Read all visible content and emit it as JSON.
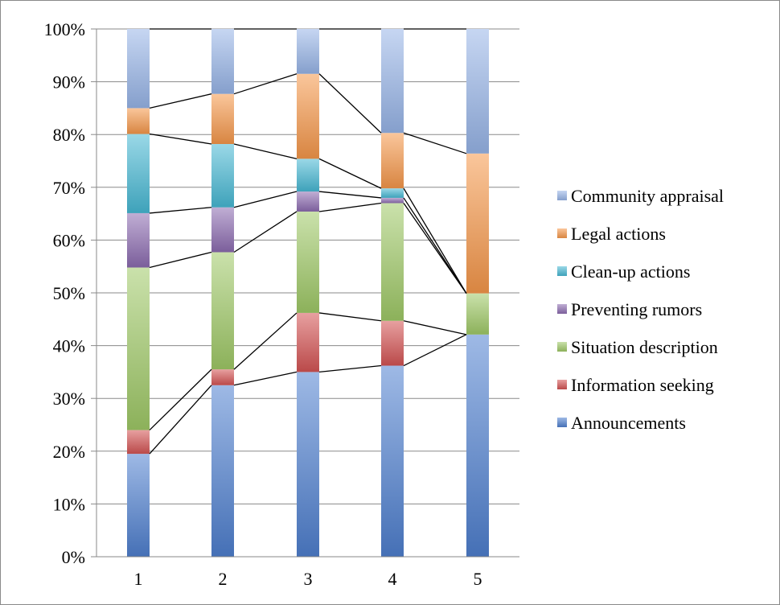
{
  "chart_data": {
    "type": "bar",
    "stacked": true,
    "percent_scale": true,
    "title": "",
    "xlabel": "",
    "ylabel": "",
    "categories": [
      "1",
      "2",
      "3",
      "4",
      "5"
    ],
    "ylim": [
      0,
      100
    ],
    "y_ticks": [
      "0%",
      "10%",
      "20%",
      "30%",
      "40%",
      "50%",
      "60%",
      "70%",
      "80%",
      "90%",
      "100%"
    ],
    "grid": true,
    "legend_position": "right",
    "connector_lines": true,
    "series": [
      {
        "name": "Announcements",
        "color": "#4e7fcf",
        "values": [
          19.5,
          32.5,
          35.0,
          36.2,
          42.1
        ]
      },
      {
        "name": "Information seeking",
        "color": "#d35353",
        "values": [
          4.5,
          3.0,
          11.2,
          8.5,
          0.0
        ]
      },
      {
        "name": "Situation description",
        "color": "#9fc966",
        "values": [
          30.8,
          22.2,
          19.2,
          22.3,
          7.8
        ]
      },
      {
        "name": "Preventing rumors",
        "color": "#8c6bb0",
        "values": [
          10.3,
          8.5,
          3.8,
          1.0,
          0.0
        ]
      },
      {
        "name": "Clean-up actions",
        "color": "#47b8d3",
        "values": [
          15.0,
          12.0,
          6.2,
          1.8,
          0.0
        ]
      },
      {
        "name": "Legal actions",
        "color": "#f5974a",
        "values": [
          4.9,
          9.5,
          16.1,
          10.5,
          26.5
        ]
      },
      {
        "name": "Community appraisal",
        "color": "#97b5e8",
        "values": [
          15.0,
          12.3,
          8.5,
          19.7,
          23.6
        ]
      }
    ]
  },
  "legend_order": [
    "Community appraisal",
    "Legal actions",
    "Clean-up actions",
    "Preventing rumors",
    "Situation description",
    "Information seeking",
    "Announcements"
  ]
}
